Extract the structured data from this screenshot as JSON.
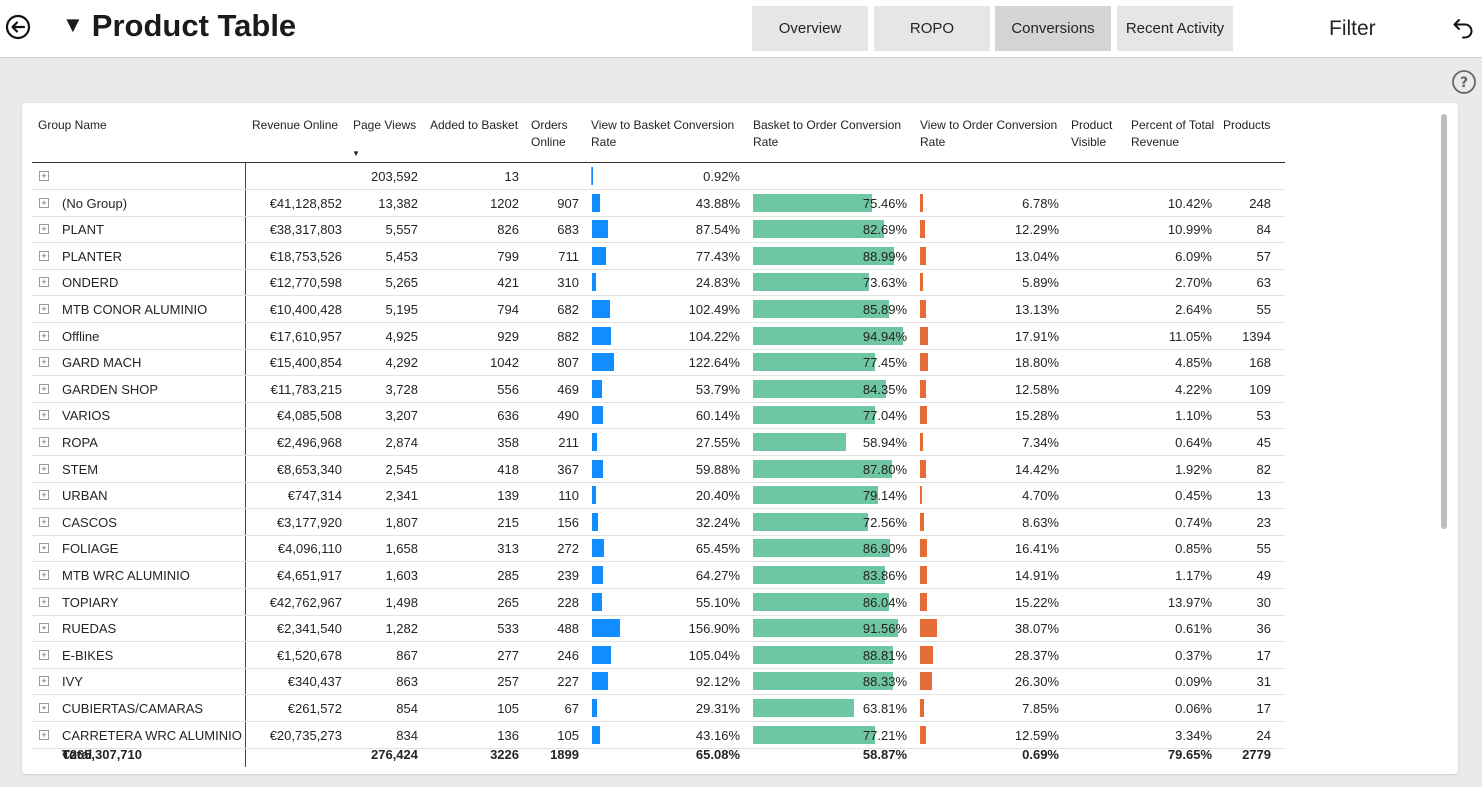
{
  "header": {
    "title": "Product Table",
    "tabs": [
      "Overview",
      "ROPO",
      "Conversions",
      "Recent Activity"
    ],
    "active_tab": "Conversions",
    "filter_label": "Filter"
  },
  "table": {
    "columns": [
      "Group Name",
      "Revenue Online",
      "Page Views",
      "Added to Basket",
      "Orders Online",
      "View to Basket Conversion Rate",
      "Basket to Order Conversion Rate",
      "View to Order Conversion Rate",
      "Product Visible",
      "Percent of Total Revenue",
      "Products"
    ],
    "rows": [
      {
        "name": "",
        "revenue": "",
        "views": "203,592",
        "basket": "13",
        "orders": "",
        "vtb": "0.92%",
        "bto": "",
        "vto": "",
        "visible": "",
        "pct": "",
        "products": "",
        "vtb_v": 0.92,
        "bto_v": null,
        "vto_v": null
      },
      {
        "name": "(No Group)",
        "revenue": "€41,128,852",
        "views": "13,382",
        "basket": "1202",
        "orders": "907",
        "vtb": "43.88%",
        "bto": "75.46%",
        "vto": "6.78%",
        "visible": "",
        "pct": "10.42%",
        "products": "248",
        "vtb_v": 43.88,
        "bto_v": 75.46,
        "vto_v": 6.78
      },
      {
        "name": "PLANT",
        "revenue": "€38,317,803",
        "views": "5,557",
        "basket": "826",
        "orders": "683",
        "vtb": "87.54%",
        "bto": "82.69%",
        "vto": "12.29%",
        "visible": "",
        "pct": "10.99%",
        "products": "84",
        "vtb_v": 87.54,
        "bto_v": 82.69,
        "vto_v": 12.29
      },
      {
        "name": "PLANTER",
        "revenue": "€18,753,526",
        "views": "5,453",
        "basket": "799",
        "orders": "711",
        "vtb": "77.43%",
        "bto": "88.99%",
        "vto": "13.04%",
        "visible": "",
        "pct": "6.09%",
        "products": "57",
        "vtb_v": 77.43,
        "bto_v": 88.99,
        "vto_v": 13.04
      },
      {
        "name": "ONDERD",
        "revenue": "€12,770,598",
        "views": "5,265",
        "basket": "421",
        "orders": "310",
        "vtb": "24.83%",
        "bto": "73.63%",
        "vto": "5.89%",
        "visible": "",
        "pct": "2.70%",
        "products": "63",
        "vtb_v": 24.83,
        "bto_v": 73.63,
        "vto_v": 5.89
      },
      {
        "name": "MTB CONOR ALUMINIO",
        "revenue": "€10,400,428",
        "views": "5,195",
        "basket": "794",
        "orders": "682",
        "vtb": "102.49%",
        "bto": "85.89%",
        "vto": "13.13%",
        "visible": "",
        "pct": "2.64%",
        "products": "55",
        "vtb_v": 102.49,
        "bto_v": 85.89,
        "vto_v": 13.13
      },
      {
        "name": "Offline",
        "revenue": "€17,610,957",
        "views": "4,925",
        "basket": "929",
        "orders": "882",
        "vtb": "104.22%",
        "bto": "94.94%",
        "vto": "17.91%",
        "visible": "",
        "pct": "11.05%",
        "products": "1394",
        "vtb_v": 104.22,
        "bto_v": 94.94,
        "vto_v": 17.91
      },
      {
        "name": "GARD MACH",
        "revenue": "€15,400,854",
        "views": "4,292",
        "basket": "1042",
        "orders": "807",
        "vtb": "122.64%",
        "bto": "77.45%",
        "vto": "18.80%",
        "visible": "",
        "pct": "4.85%",
        "products": "168",
        "vtb_v": 122.64,
        "bto_v": 77.45,
        "vto_v": 18.8
      },
      {
        "name": "GARDEN SHOP",
        "revenue": "€11,783,215",
        "views": "3,728",
        "basket": "556",
        "orders": "469",
        "vtb": "53.79%",
        "bto": "84.35%",
        "vto": "12.58%",
        "visible": "",
        "pct": "4.22%",
        "products": "109",
        "vtb_v": 53.79,
        "bto_v": 84.35,
        "vto_v": 12.58
      },
      {
        "name": "VARIOS",
        "revenue": "€4,085,508",
        "views": "3,207",
        "basket": "636",
        "orders": "490",
        "vtb": "60.14%",
        "bto": "77.04%",
        "vto": "15.28%",
        "visible": "",
        "pct": "1.10%",
        "products": "53",
        "vtb_v": 60.14,
        "bto_v": 77.04,
        "vto_v": 15.28
      },
      {
        "name": "ROPA",
        "revenue": "€2,496,968",
        "views": "2,874",
        "basket": "358",
        "orders": "211",
        "vtb": "27.55%",
        "bto": "58.94%",
        "vto": "7.34%",
        "visible": "",
        "pct": "0.64%",
        "products": "45",
        "vtb_v": 27.55,
        "bto_v": 58.94,
        "vto_v": 7.34
      },
      {
        "name": "STEM",
        "revenue": "€8,653,340",
        "views": "2,545",
        "basket": "418",
        "orders": "367",
        "vtb": "59.88%",
        "bto": "87.80%",
        "vto": "14.42%",
        "visible": "",
        "pct": "1.92%",
        "products": "82",
        "vtb_v": 59.88,
        "bto_v": 87.8,
        "vto_v": 14.42
      },
      {
        "name": "URBAN",
        "revenue": "€747,314",
        "views": "2,341",
        "basket": "139",
        "orders": "110",
        "vtb": "20.40%",
        "bto": "79.14%",
        "vto": "4.70%",
        "visible": "",
        "pct": "0.45%",
        "products": "13",
        "vtb_v": 20.4,
        "bto_v": 79.14,
        "vto_v": 4.7
      },
      {
        "name": "CASCOS",
        "revenue": "€3,177,920",
        "views": "1,807",
        "basket": "215",
        "orders": "156",
        "vtb": "32.24%",
        "bto": "72.56%",
        "vto": "8.63%",
        "visible": "",
        "pct": "0.74%",
        "products": "23",
        "vtb_v": 32.24,
        "bto_v": 72.56,
        "vto_v": 8.63
      },
      {
        "name": "FOLIAGE",
        "revenue": "€4,096,110",
        "views": "1,658",
        "basket": "313",
        "orders": "272",
        "vtb": "65.45%",
        "bto": "86.90%",
        "vto": "16.41%",
        "visible": "",
        "pct": "0.85%",
        "products": "55",
        "vtb_v": 65.45,
        "bto_v": 86.9,
        "vto_v": 16.41
      },
      {
        "name": "MTB WRC ALUMINIO",
        "revenue": "€4,651,917",
        "views": "1,603",
        "basket": "285",
        "orders": "239",
        "vtb": "64.27%",
        "bto": "83.86%",
        "vto": "14.91%",
        "visible": "",
        "pct": "1.17%",
        "products": "49",
        "vtb_v": 64.27,
        "bto_v": 83.86,
        "vto_v": 14.91
      },
      {
        "name": "TOPIARY",
        "revenue": "€42,762,967",
        "views": "1,498",
        "basket": "265",
        "orders": "228",
        "vtb": "55.10%",
        "bto": "86.04%",
        "vto": "15.22%",
        "visible": "",
        "pct": "13.97%",
        "products": "30",
        "vtb_v": 55.1,
        "bto_v": 86.04,
        "vto_v": 15.22
      },
      {
        "name": "RUEDAS",
        "revenue": "€2,341,540",
        "views": "1,282",
        "basket": "533",
        "orders": "488",
        "vtb": "156.90%",
        "bto": "91.56%",
        "vto": "38.07%",
        "visible": "",
        "pct": "0.61%",
        "products": "36",
        "vtb_v": 156.9,
        "bto_v": 91.56,
        "vto_v": 38.07
      },
      {
        "name": "E-BIKES",
        "revenue": "€1,520,678",
        "views": "867",
        "basket": "277",
        "orders": "246",
        "vtb": "105.04%",
        "bto": "88.81%",
        "vto": "28.37%",
        "visible": "",
        "pct": "0.37%",
        "products": "17",
        "vtb_v": 105.04,
        "bto_v": 88.81,
        "vto_v": 28.37
      },
      {
        "name": "IVY",
        "revenue": "€340,437",
        "views": "863",
        "basket": "257",
        "orders": "227",
        "vtb": "92.12%",
        "bto": "88.33%",
        "vto": "26.30%",
        "visible": "",
        "pct": "0.09%",
        "products": "31",
        "vtb_v": 92.12,
        "bto_v": 88.33,
        "vto_v": 26.3
      },
      {
        "name": "CUBIERTAS/CAMARAS",
        "revenue": "€261,572",
        "views": "854",
        "basket": "105",
        "orders": "67",
        "vtb": "29.31%",
        "bto": "63.81%",
        "vto": "7.85%",
        "visible": "",
        "pct": "0.06%",
        "products": "17",
        "vtb_v": 29.31,
        "bto_v": 63.81,
        "vto_v": 7.85
      },
      {
        "name": "CARRETERA WRC ALUMINIO",
        "revenue": "€20,735,273",
        "views": "834",
        "basket": "136",
        "orders": "105",
        "vtb": "43.16%",
        "bto": "77.21%",
        "vto": "12.59%",
        "visible": "",
        "pct": "3.34%",
        "products": "24",
        "vtb_v": 43.16,
        "bto_v": 77.21,
        "vto_v": 12.59
      }
    ],
    "total": {
      "label": "Total",
      "revenue": "€265,307,710",
      "views": "276,424",
      "basket": "3226",
      "orders": "1899",
      "vtb": "65.08%",
      "bto": "58.87%",
      "vto": "0.69%",
      "pct": "79.65%",
      "products": "2779"
    }
  },
  "colors": {
    "vtb_bar": "#118dff",
    "bto_bar": "#6fc6a2",
    "vto_bar": "#e66c37"
  },
  "icons": {
    "back": "back-arrow-circle-icon",
    "collapse": "triangle-down-icon",
    "undo": "undo-arrow-icon",
    "help": "question-circle-icon",
    "expand": "plus-square-icon",
    "sort": "sort-descending-icon"
  }
}
